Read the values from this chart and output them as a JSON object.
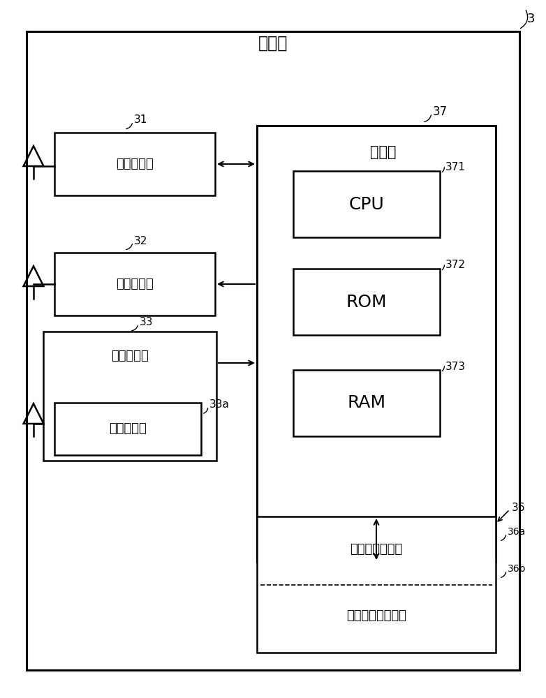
{
  "title": "车载机",
  "bg_color": "#ffffff",
  "border_color": "#000000",
  "label_3": "3",
  "label_37": "37",
  "label_31": "31",
  "label_32": "32",
  "label_33": "33",
  "label_33a": "33a",
  "label_36": "36",
  "label_36a": "36a",
  "label_36b": "36b",
  "label_371": "371",
  "label_372": "372",
  "label_373": "373",
  "text_control": "控制部",
  "text_cpu": "CPU",
  "text_rom": "ROM",
  "text_ram": "RAM",
  "text_narrow": "狭域通信部",
  "text_wide": "广域通信部",
  "text_position": "位置检测部",
  "text_height": "高度检测部",
  "text_storage": "本车辆存储区域",
  "text_peripheral": "周边车辆存储区域"
}
